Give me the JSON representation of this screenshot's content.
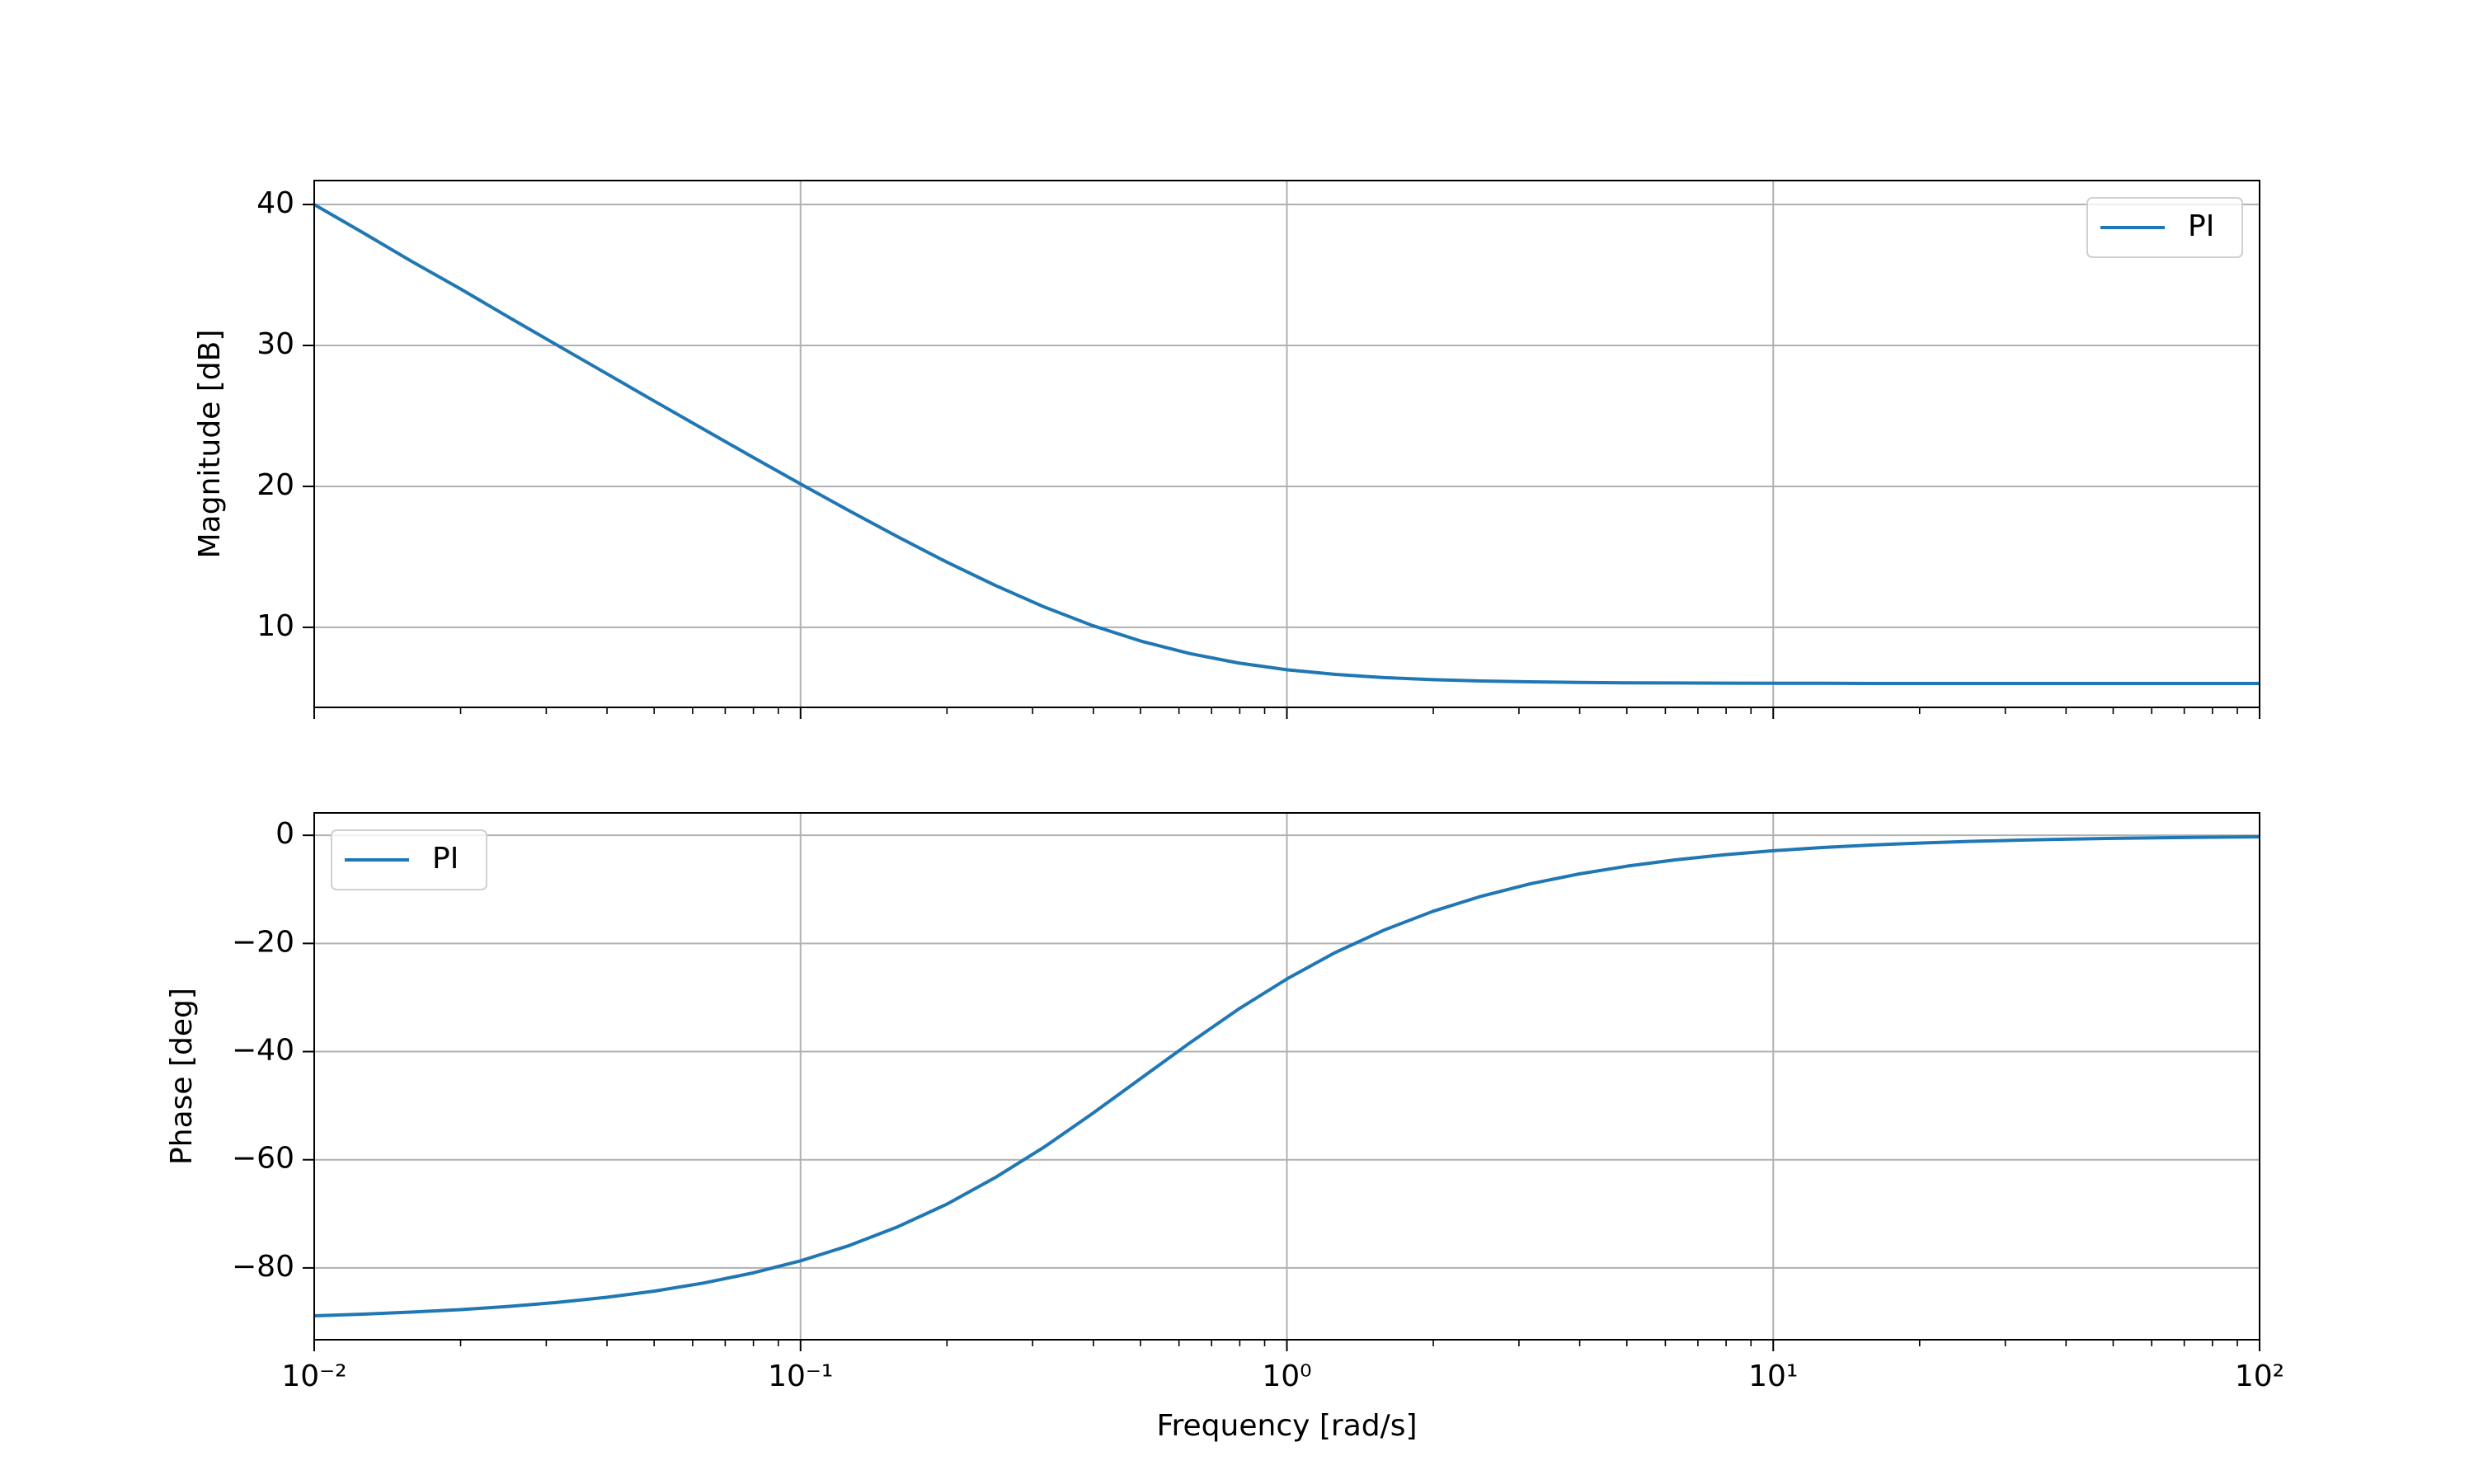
{
  "chart_data": [
    {
      "type": "line",
      "ylabel": "Magnitude [dB]",
      "x_scale": "log",
      "grid": true,
      "legend": "upper right",
      "show_xticklabels": false,
      "x": [
        0.01,
        0.0126,
        0.0158,
        0.02,
        0.0251,
        0.0316,
        0.0398,
        0.0501,
        0.0631,
        0.0794,
        0.1,
        0.1259,
        0.1585,
        0.1995,
        0.2512,
        0.3162,
        0.3981,
        0.5012,
        0.631,
        0.7943,
        1,
        1.259,
        1.585,
        1.995,
        2.512,
        3.162,
        3.981,
        5.012,
        6.31,
        7.943,
        10,
        12.59,
        15.85,
        19.95,
        25.12,
        31.62,
        39.81,
        50.12,
        63.1,
        79.43,
        100
      ],
      "series": [
        {
          "name": "PI",
          "color": "#1f77b4",
          "values": [
            40.0,
            38.0,
            36.0,
            34.01,
            32.01,
            30.02,
            28.03,
            26.04,
            24.07,
            22.11,
            20.17,
            18.27,
            16.42,
            14.64,
            12.98,
            11.46,
            10.13,
            9.02,
            8.14,
            7.47,
            6.99,
            6.66,
            6.43,
            6.29,
            6.19,
            6.13,
            6.09,
            6.06,
            6.05,
            6.04,
            6.03,
            6.03,
            6.02,
            6.02,
            6.02,
            6.02,
            6.02,
            6.02,
            6.02,
            6.02,
            6.02
          ]
        }
      ],
      "xlim": [
        0.01,
        100
      ],
      "xticks": [
        0.01,
        0.1,
        1,
        10,
        100
      ],
      "x_minor_ticks": [
        0.02,
        0.03,
        0.04,
        0.05,
        0.06,
        0.07,
        0.08,
        0.09,
        0.2,
        0.3,
        0.4,
        0.5,
        0.6,
        0.7,
        0.8,
        0.9,
        2,
        3,
        4,
        5,
        6,
        7,
        8,
        9,
        20,
        30,
        40,
        50,
        60,
        70,
        80,
        90
      ],
      "ylim": [
        4.32,
        41.7
      ],
      "yticks": [
        10,
        20,
        30,
        40
      ]
    },
    {
      "type": "line",
      "ylabel": "Phase [deg]",
      "xlabel": "Frequency [rad/s]",
      "x_scale": "log",
      "grid": true,
      "legend": "upper left",
      "show_xticklabels": true,
      "x": [
        0.01,
        0.0126,
        0.0158,
        0.02,
        0.0251,
        0.0316,
        0.0398,
        0.0501,
        0.0631,
        0.0794,
        0.1,
        0.1259,
        0.1585,
        0.1995,
        0.2512,
        0.3162,
        0.3981,
        0.5012,
        0.631,
        0.7943,
        1,
        1.259,
        1.585,
        1.995,
        2.512,
        3.162,
        3.981,
        5.012,
        6.31,
        7.943,
        10,
        12.59,
        15.85,
        19.95,
        25.12,
        31.62,
        39.81,
        50.12,
        63.1,
        79.43,
        100
      ],
      "series": [
        {
          "name": "PI",
          "color": "#1f77b4",
          "values": [
            -88.85,
            -88.56,
            -88.18,
            -87.71,
            -87.12,
            -86.38,
            -85.45,
            -84.28,
            -82.81,
            -80.97,
            -78.69,
            -75.87,
            -72.39,
            -68.25,
            -63.31,
            -57.71,
            -51.47,
            -44.93,
            -38.41,
            -32.18,
            -26.57,
            -21.65,
            -17.52,
            -14.07,
            -11.26,
            -8.98,
            -7.16,
            -5.7,
            -4.53,
            -3.6,
            -2.86,
            -2.27,
            -1.81,
            -1.44,
            -1.14,
            -0.91,
            -0.72,
            -0.57,
            -0.45,
            -0.36,
            -0.29
          ]
        }
      ],
      "xlim": [
        0.01,
        100
      ],
      "xticks": [
        {
          "value": 0.01,
          "label": "10⁻²"
        },
        {
          "value": 0.1,
          "label": "10⁻¹"
        },
        {
          "value": 1,
          "label": "10⁰"
        },
        {
          "value": 10,
          "label": "10¹"
        },
        {
          "value": 100,
          "label": "10²"
        }
      ],
      "x_minor_ticks": [
        0.02,
        0.03,
        0.04,
        0.05,
        0.06,
        0.07,
        0.08,
        0.09,
        0.2,
        0.3,
        0.4,
        0.5,
        0.6,
        0.7,
        0.8,
        0.9,
        2,
        3,
        4,
        5,
        6,
        7,
        8,
        9,
        20,
        30,
        40,
        50,
        60,
        70,
        80,
        90
      ],
      "ylim": [
        -93.28,
        4.14
      ],
      "yticks": [
        {
          "value": -80,
          "label": "−80"
        },
        {
          "value": -60,
          "label": "−60"
        },
        {
          "value": -40,
          "label": "−40"
        },
        {
          "value": -20,
          "label": "−20"
        },
        0
      ]
    }
  ]
}
